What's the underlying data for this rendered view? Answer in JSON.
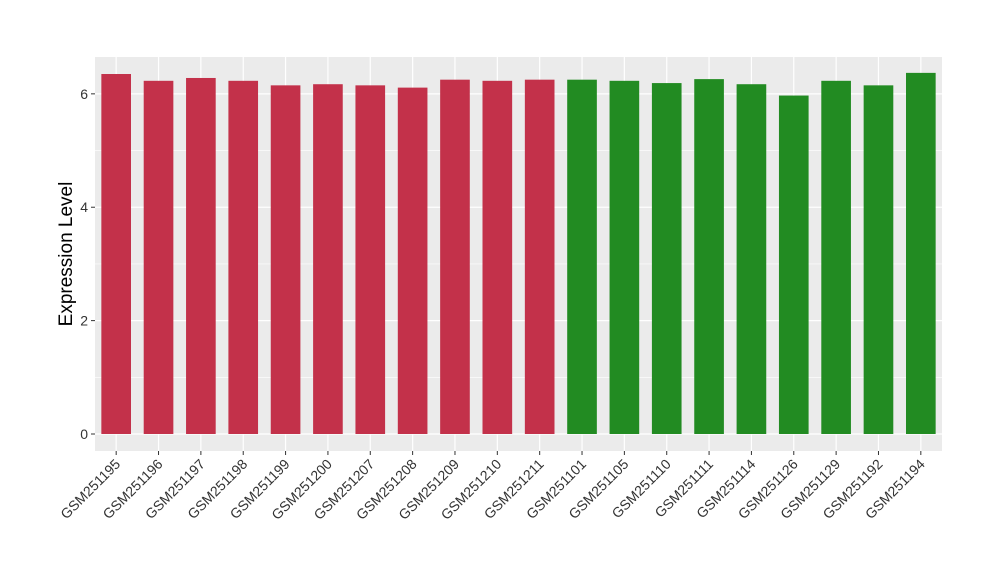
{
  "chart_data": {
    "type": "bar",
    "title": "",
    "xlabel": "",
    "ylabel": "Expression Level",
    "ylim": [
      -0.3,
      6.65
    ],
    "yticks": [
      0,
      2,
      4,
      6
    ],
    "grid": true,
    "legend": "none",
    "categories": [
      "GSM251195",
      "GSM251196",
      "GSM251197",
      "GSM251198",
      "GSM251199",
      "GSM251200",
      "GSM251207",
      "GSM251208",
      "GSM251209",
      "GSM251210",
      "GSM251211",
      "GSM251101",
      "GSM251105",
      "GSM251110",
      "GSM251111",
      "GSM251114",
      "GSM251126",
      "GSM251129",
      "GSM251192",
      "GSM251194"
    ],
    "values": [
      6.35,
      6.23,
      6.28,
      6.23,
      6.15,
      6.17,
      6.15,
      6.11,
      6.25,
      6.23,
      6.25,
      6.25,
      6.23,
      6.19,
      6.26,
      6.17,
      5.97,
      6.23,
      6.15,
      6.37
    ],
    "groups": [
      "a",
      "a",
      "a",
      "a",
      "a",
      "a",
      "a",
      "a",
      "a",
      "a",
      "a",
      "b",
      "b",
      "b",
      "b",
      "b",
      "b",
      "b",
      "b",
      "b"
    ],
    "colors": {
      "a": "#C3314A",
      "b": "#228B22"
    },
    "panel_background": "#EBEBEB",
    "grid_color": "#FFFFFF"
  }
}
